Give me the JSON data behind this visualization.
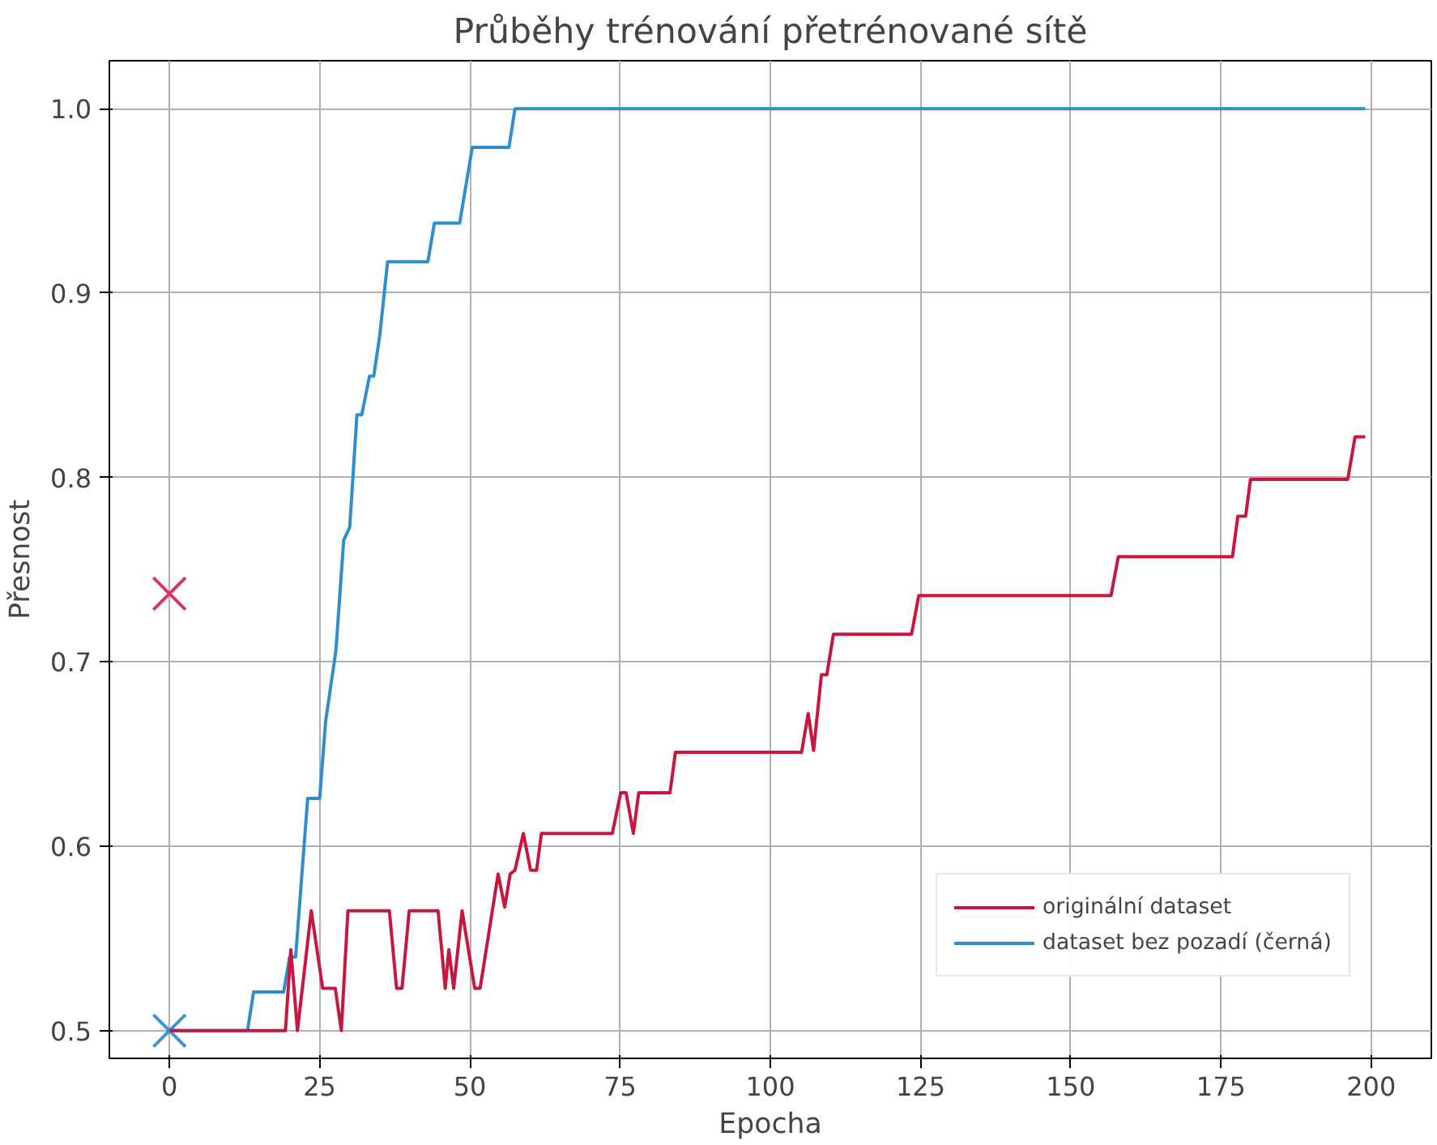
{
  "chart_data": {
    "type": "line",
    "title": "Průběhy trénování přetrénované sítě",
    "xlabel": "Epocha",
    "ylabel": "Přesnost",
    "xlim": [
      -10,
      210
    ],
    "ylim": [
      0.485,
      1.026
    ],
    "xticks": [
      0,
      25,
      50,
      75,
      100,
      125,
      150,
      175,
      200
    ],
    "yticks": [
      0.5,
      0.6,
      0.7,
      0.8,
      0.9,
      {
        "value": 1.0,
        "label": "1.0"
      }
    ],
    "grid": true,
    "legend": "bottom right",
    "marker": "none",
    "line_style": "solid",
    "series": [
      {
        "name": "originální dataset",
        "color": "#c8173f",
        "x": [
          0,
          19.3,
          20.2,
          21.3,
          23.6,
          25.5,
          27.6,
          28.6,
          29.7,
          36.6,
          37.8,
          38.7,
          39.9,
          44.7,
          45.9,
          46.5,
          47.3,
          48.7,
          50.8,
          51.7,
          54.7,
          55.8,
          56.7,
          57.5,
          58.9,
          60.1,
          61.1,
          61.9,
          73.7,
          75.1,
          76,
          77.2,
          78.1,
          83.3,
          84.2,
          105.2,
          106.3,
          107.2,
          108.5,
          109.4,
          110.5,
          123.5,
          124.7,
          156.7,
          157.9,
          176.9,
          177.8,
          179.1,
          179.9,
          196.1,
          197.3,
          199
        ],
        "values": [
          0.5,
          0.5,
          0.544,
          0.5,
          0.565,
          0.523,
          0.523,
          0.5,
          0.565,
          0.565,
          0.523,
          0.523,
          0.565,
          0.565,
          0.523,
          0.544,
          0.523,
          0.565,
          0.523,
          0.523,
          0.585,
          0.567,
          0.585,
          0.587,
          0.607,
          0.587,
          0.587,
          0.607,
          0.607,
          0.629,
          0.629,
          0.607,
          0.629,
          0.629,
          0.651,
          0.651,
          0.672,
          0.652,
          0.693,
          0.693,
          0.715,
          0.715,
          0.736,
          0.736,
          0.757,
          0.757,
          0.779,
          0.779,
          0.799,
          0.799,
          0.822,
          0.822
        ]
      },
      {
        "name": "dataset bez pozadí (černá)",
        "color": "#2f8fce",
        "x": [
          0,
          13,
          14,
          19,
          20,
          21,
          23,
          25,
          26,
          27.7,
          29,
          30,
          31.2,
          32,
          33.3,
          34,
          35,
          36.3,
          43,
          44.1,
          48.3,
          50.4,
          56.5,
          57.5,
          199
        ],
        "values": [
          0.5,
          0.5,
          0.521,
          0.521,
          0.54,
          0.54,
          0.626,
          0.626,
          0.668,
          0.706,
          0.766,
          0.773,
          0.834,
          0.834,
          0.855,
          0.855,
          0.877,
          0.917,
          0.917,
          0.938,
          0.938,
          0.979,
          0.979,
          1.0,
          1.0
        ]
      },
      {
        "type": "scatter",
        "marker": "cross",
        "color": "#d6365f",
        "x": [
          0
        ],
        "values": [
          0.737
        ]
      },
      {
        "type": "scatter",
        "marker": "cross",
        "color": "#3a95d0",
        "x": [
          0
        ],
        "values": [
          0.5
        ]
      }
    ]
  }
}
